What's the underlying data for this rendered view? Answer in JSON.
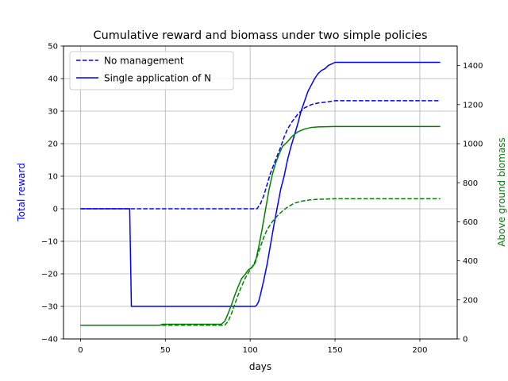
{
  "chart_data": {
    "type": "line",
    "title": "Cumulative reward and biomass under two simple policies",
    "xlabel": "days",
    "ylabel_left": "Total reward",
    "ylabel_right": "Above ground biomass",
    "xlim": [
      -10,
      222
    ],
    "ylim_left": [
      -40,
      50
    ],
    "ylim_right": [
      0,
      1500
    ],
    "xticks": [
      0,
      50,
      100,
      150,
      200
    ],
    "yticks_left": [
      -40,
      -30,
      -20,
      -10,
      0,
      10,
      20,
      30,
      40,
      50
    ],
    "yticks_right": [
      0,
      200,
      400,
      600,
      800,
      1000,
      1200,
      1400
    ],
    "grid": true,
    "legend_position": "upper-left",
    "legend": [
      {
        "label": "No management",
        "style": "dashed",
        "color": "#0000ff"
      },
      {
        "label": "Single application of N",
        "style": "solid",
        "color": "#0000ff"
      }
    ],
    "colors": {
      "reward": "#0000ff",
      "biomass": "#008000"
    },
    "series": [
      {
        "axis": "left",
        "style": "dashed",
        "color": "#0000ff",
        "points": [
          [
            0,
            0
          ],
          [
            104,
            0
          ],
          [
            106,
            1.5
          ],
          [
            108,
            4
          ],
          [
            110,
            7.5
          ],
          [
            112,
            11
          ],
          [
            115,
            15
          ],
          [
            118,
            19
          ],
          [
            120,
            22
          ],
          [
            122,
            24.5
          ],
          [
            125,
            27
          ],
          [
            128,
            29
          ],
          [
            132,
            31
          ],
          [
            136,
            32
          ],
          [
            140,
            32.5
          ],
          [
            145,
            32.8
          ],
          [
            150,
            33.2
          ],
          [
            180,
            33.2
          ],
          [
            212,
            33.2
          ]
        ]
      },
      {
        "axis": "left",
        "style": "solid",
        "color": "#0000ff",
        "points": [
          [
            0,
            0
          ],
          [
            29,
            0
          ],
          [
            30,
            -30
          ],
          [
            103,
            -30
          ],
          [
            104,
            -29.5
          ],
          [
            105,
            -28.5
          ],
          [
            106,
            -26.5
          ],
          [
            108,
            -22
          ],
          [
            110,
            -17
          ],
          [
            112,
            -11
          ],
          [
            114,
            -5
          ],
          [
            116,
            0.5
          ],
          [
            118,
            6
          ],
          [
            120,
            10
          ],
          [
            122,
            15
          ],
          [
            124,
            19
          ],
          [
            126,
            22.5
          ],
          [
            128,
            26
          ],
          [
            130,
            30
          ],
          [
            132,
            33
          ],
          [
            134,
            36
          ],
          [
            136,
            38
          ],
          [
            138,
            40
          ],
          [
            140,
            41.5
          ],
          [
            142,
            42.5
          ],
          [
            144,
            43
          ],
          [
            146,
            44
          ],
          [
            148,
            44.5
          ],
          [
            150,
            45
          ],
          [
            180,
            45
          ],
          [
            212,
            45
          ]
        ]
      },
      {
        "axis": "right",
        "style": "dashed",
        "color": "#008000",
        "points": [
          [
            0,
            70
          ],
          [
            85,
            70
          ],
          [
            87,
            90
          ],
          [
            89,
            130
          ],
          [
            91,
            180
          ],
          [
            94,
            250
          ],
          [
            97,
            310
          ],
          [
            100,
            355
          ],
          [
            102,
            380
          ],
          [
            104,
            420
          ],
          [
            106,
            470
          ],
          [
            108,
            520
          ],
          [
            110,
            560
          ],
          [
            113,
            600
          ],
          [
            116,
            630
          ],
          [
            119,
            655
          ],
          [
            122,
            675
          ],
          [
            126,
            695
          ],
          [
            130,
            705
          ],
          [
            135,
            712
          ],
          [
            140,
            715
          ],
          [
            150,
            718
          ],
          [
            212,
            718
          ]
        ]
      },
      {
        "axis": "right",
        "style": "solid",
        "color": "#008000",
        "points": [
          [
            0,
            70
          ],
          [
            47,
            70
          ],
          [
            48,
            75
          ],
          [
            83,
            75
          ],
          [
            85,
            90
          ],
          [
            87,
            130
          ],
          [
            89,
            175
          ],
          [
            91,
            225
          ],
          [
            93,
            270
          ],
          [
            95,
            310
          ],
          [
            97,
            330
          ],
          [
            99,
            355
          ],
          [
            101,
            365
          ],
          [
            103,
            390
          ],
          [
            105,
            470
          ],
          [
            107,
            560
          ],
          [
            109,
            660
          ],
          [
            111,
            760
          ],
          [
            113,
            840
          ],
          [
            115,
            900
          ],
          [
            117,
            945
          ],
          [
            119,
            985
          ],
          [
            122,
            1010
          ],
          [
            125,
            1040
          ],
          [
            128,
            1060
          ],
          [
            132,
            1075
          ],
          [
            136,
            1083
          ],
          [
            140,
            1086
          ],
          [
            150,
            1088
          ],
          [
            212,
            1088
          ]
        ]
      }
    ]
  }
}
